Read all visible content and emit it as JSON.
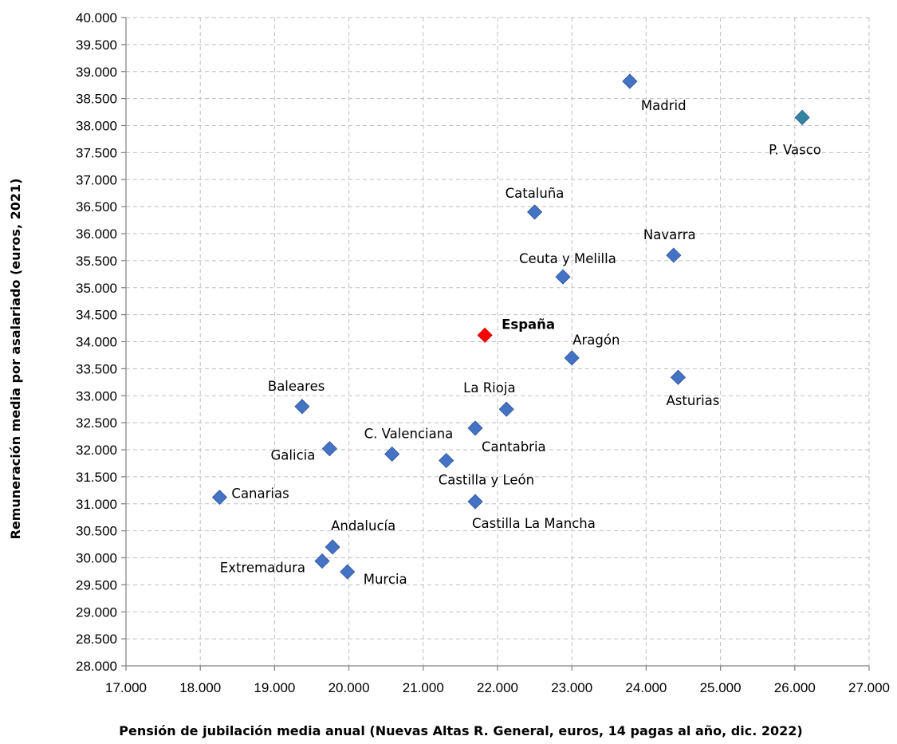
{
  "chart_data": {
    "type": "scatter",
    "title": "",
    "xlabel": "Pensión de jubilación media anual (Nuevas Altas R. General, euros, 14 pagas al año, dic. 2022)",
    "ylabel": "Remuneración media por asalariado (euros, 2021)",
    "xlim": [
      17000,
      27000
    ],
    "ylim": [
      28000,
      40000
    ],
    "x_ticks": [
      "17.000",
      "18.000",
      "19.000",
      "20.000",
      "21.000",
      "22.000",
      "23.000",
      "24.000",
      "25.000",
      "26.000",
      "27.000"
    ],
    "y_ticks": [
      "28.000",
      "28.500",
      "29.000",
      "29.500",
      "30.000",
      "30.500",
      "31.000",
      "31.500",
      "32.000",
      "32.500",
      "33.000",
      "33.500",
      "34.000",
      "34.500",
      "35.000",
      "35.500",
      "36.000",
      "36.500",
      "37.000",
      "37.500",
      "38.000",
      "38.500",
      "39.000",
      "39.500",
      "40.000"
    ],
    "grid": true,
    "colors": {
      "default": "#4472c4",
      "spain": "#ff0000",
      "pvasco": "#31859c",
      "spain_label": "#ff0000"
    },
    "points": [
      {
        "label": "Madrid",
        "x": 23780,
        "y": 38820
      },
      {
        "label": "P. Vasco",
        "x": 26100,
        "y": 38150,
        "color": "pvasco"
      },
      {
        "label": "Cataluña",
        "x": 22500,
        "y": 36400
      },
      {
        "label": "Navarra",
        "x": 24370,
        "y": 35600
      },
      {
        "label": "Ceuta y Melilla",
        "x": 22880,
        "y": 35200
      },
      {
        "label": "España",
        "x": 21830,
        "y": 34120,
        "color": "spain",
        "highlight": true
      },
      {
        "label": "Aragón",
        "x": 23000,
        "y": 33700
      },
      {
        "label": "Asturias",
        "x": 24430,
        "y": 33340
      },
      {
        "label": "Baleares",
        "x": 19370,
        "y": 32800
      },
      {
        "label": "La Rioja",
        "x": 22120,
        "y": 32750
      },
      {
        "label": "Cantabria",
        "x": 21700,
        "y": 32400
      },
      {
        "label": "C. Valenciana",
        "x": 20580,
        "y": 31920
      },
      {
        "label": "Galicia",
        "x": 19740,
        "y": 32020
      },
      {
        "label": "Castilla y León",
        "x": 21310,
        "y": 31800
      },
      {
        "label": "Canarias",
        "x": 18260,
        "y": 31120
      },
      {
        "label": "Castilla La Mancha",
        "x": 21700,
        "y": 31040
      },
      {
        "label": "Andalucía",
        "x": 19780,
        "y": 30200
      },
      {
        "label": "Extremadura",
        "x": 19640,
        "y": 29940
      },
      {
        "label": "Murcia",
        "x": 19980,
        "y": 29740
      }
    ]
  }
}
